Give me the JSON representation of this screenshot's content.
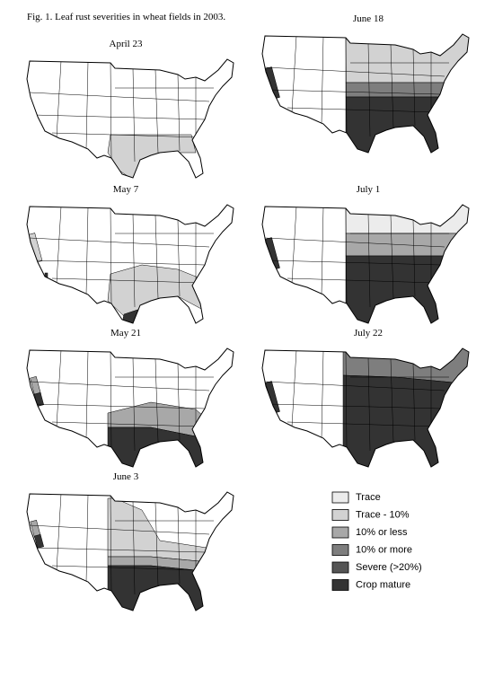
{
  "caption": "Fig. 1.  Leaf rust severities in wheat fields in 2003.",
  "maps": [
    {
      "label": "April 23"
    },
    {
      "label": "June 18"
    },
    {
      "label": "May 7"
    },
    {
      "label": "July 1"
    },
    {
      "label": "May 21"
    },
    {
      "label": "July 22"
    },
    {
      "label": "June 3"
    }
  ],
  "legend": [
    {
      "label": "Trace",
      "color": "#ececec"
    },
    {
      "label": "Trace - 10%",
      "color": "#d2d2d2"
    },
    {
      "label": "10% or less",
      "color": "#a8a8a8"
    },
    {
      "label": "10% or more",
      "color": "#7e7e7e"
    },
    {
      "label": "Severe (>20%)",
      "color": "#555555"
    },
    {
      "label": "Crop mature",
      "color": "#333333"
    }
  ]
}
